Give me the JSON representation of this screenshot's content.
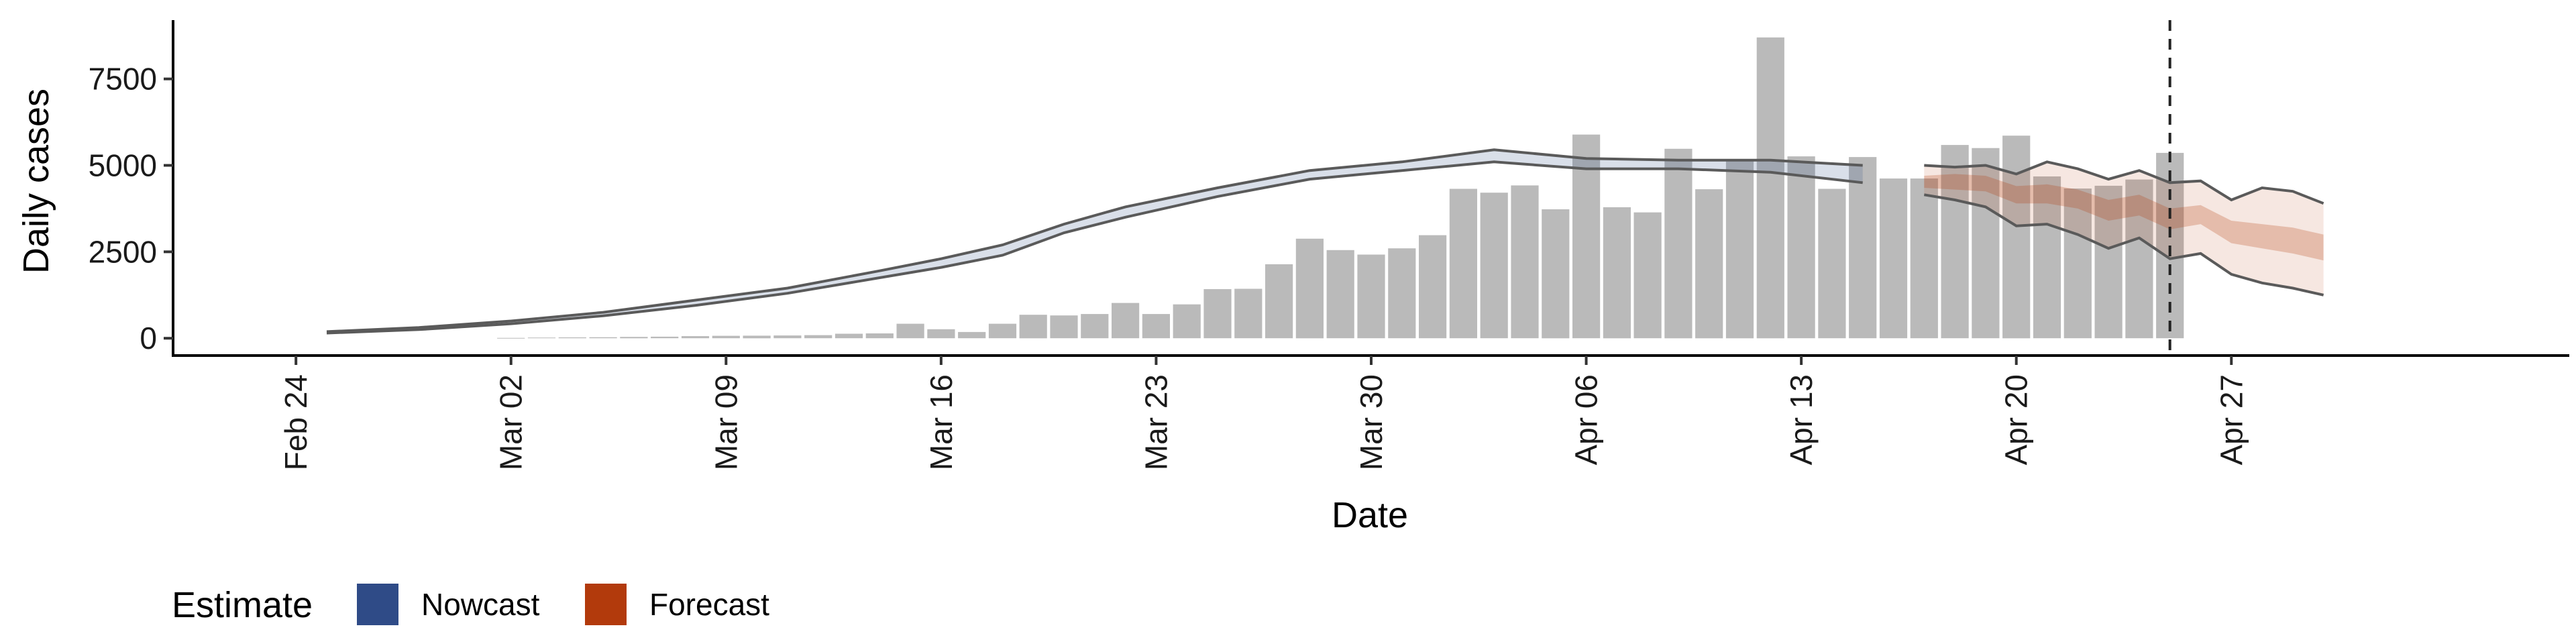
{
  "chart_data": {
    "type": "bar",
    "xlabel": "Date",
    "ylabel": "Daily cases",
    "ylim": [
      -500,
      9200
    ],
    "y_ticks": [
      0,
      2500,
      5000,
      7500
    ],
    "y_tick_labels": [
      "0",
      "2500",
      "5000",
      "7500"
    ],
    "x_ticks": [
      "2020-02-24",
      "2020-03-02",
      "2020-03-09",
      "2020-03-16",
      "2020-03-23",
      "2020-03-30",
      "2020-04-06",
      "2020-04-13",
      "2020-04-20",
      "2020-04-27"
    ],
    "x_tick_labels": [
      "Feb 24",
      "Mar 02",
      "Mar 09",
      "Mar 16",
      "Mar 23",
      "Mar 30",
      "Apr 06",
      "Apr 13",
      "Apr 20",
      "Apr 27"
    ],
    "xlim": [
      "2020-02-20",
      "2020-05-08"
    ],
    "reference_line_date": "2020-04-25",
    "bars": {
      "dates": [
        "2020-03-02",
        "2020-03-03",
        "2020-03-04",
        "2020-03-05",
        "2020-03-06",
        "2020-03-07",
        "2020-03-08",
        "2020-03-09",
        "2020-03-10",
        "2020-03-11",
        "2020-03-12",
        "2020-03-13",
        "2020-03-14",
        "2020-03-15",
        "2020-03-16",
        "2020-03-17",
        "2020-03-18",
        "2020-03-19",
        "2020-03-20",
        "2020-03-21",
        "2020-03-22",
        "2020-03-23",
        "2020-03-24",
        "2020-03-25",
        "2020-03-26",
        "2020-03-27",
        "2020-03-28",
        "2020-03-29",
        "2020-03-30",
        "2020-03-31",
        "2020-04-01",
        "2020-04-02",
        "2020-04-03",
        "2020-04-04",
        "2020-04-05",
        "2020-04-06",
        "2020-04-07",
        "2020-04-08",
        "2020-04-09",
        "2020-04-10",
        "2020-04-11",
        "2020-04-12",
        "2020-04-13",
        "2020-04-14",
        "2020-04-15",
        "2020-04-16",
        "2020-04-17",
        "2020-04-18",
        "2020-04-19",
        "2020-04-20",
        "2020-04-21",
        "2020-04-22",
        "2020-04-23",
        "2020-04-24",
        "2020-04-25"
      ],
      "values": [
        10,
        20,
        25,
        30,
        40,
        45,
        60,
        70,
        75,
        80,
        90,
        130,
        140,
        420,
        260,
        180,
        420,
        680,
        660,
        700,
        1020,
        700,
        980,
        1420,
        1430,
        2140,
        2880,
        2550,
        2420,
        2600,
        2980,
        4320,
        4210,
        4420,
        3730,
        5890,
        3790,
        3640,
        5480,
        4310,
        5150,
        8700,
        5260,
        4320,
        5240,
        4620,
        4620,
        5590,
        5500,
        5860,
        4680,
        4330,
        4410,
        4590,
        5360
      ]
    },
    "series": [
      {
        "name": "Nowcast",
        "color": "#2f4b87",
        "dates": [
          "2020-02-25",
          "2020-02-28",
          "2020-03-02",
          "2020-03-05",
          "2020-03-08",
          "2020-03-11",
          "2020-03-14",
          "2020-03-16",
          "2020-03-18",
          "2020-03-20",
          "2020-03-22",
          "2020-03-25",
          "2020-03-28",
          "2020-03-31",
          "2020-04-03",
          "2020-04-06",
          "2020-04-09",
          "2020-04-12",
          "2020-04-15"
        ],
        "lower": [
          150,
          250,
          420,
          650,
          950,
          1300,
          1750,
          2050,
          2400,
          3050,
          3500,
          4100,
          4600,
          4850,
          5100,
          4900,
          4900,
          4800,
          4500
        ],
        "upper": [
          190,
          310,
          500,
          750,
          1100,
          1450,
          1950,
          2300,
          2700,
          3300,
          3800,
          4350,
          4850,
          5100,
          5450,
          5200,
          5150,
          5150,
          5000
        ]
      },
      {
        "name": "Forecast",
        "color": "#b23a0c",
        "dates": [
          "2020-04-17",
          "2020-04-18",
          "2020-04-19",
          "2020-04-20",
          "2020-04-21",
          "2020-04-22",
          "2020-04-23",
          "2020-04-24",
          "2020-04-25",
          "2020-04-26",
          "2020-04-27",
          "2020-04-28",
          "2020-04-29",
          "2020-04-30"
        ],
        "lower": [
          4150,
          4000,
          3800,
          3250,
          3300,
          3000,
          2600,
          2900,
          2300,
          2450,
          1850,
          1600,
          1450,
          1250
        ],
        "inner_lower": [
          4350,
          4300,
          4250,
          3900,
          3900,
          3750,
          3400,
          3550,
          3150,
          3300,
          2750,
          2600,
          2450,
          2250
        ],
        "inner_upper": [
          4700,
          4750,
          4700,
          4400,
          4450,
          4300,
          4000,
          4150,
          3750,
          3850,
          3400,
          3300,
          3200,
          3000
        ],
        "upper": [
          5000,
          4950,
          5000,
          4750,
          5100,
          4900,
          4600,
          4850,
          4500,
          4550,
          4000,
          4350,
          4250,
          3900
        ]
      }
    ],
    "legend": {
      "title": "Estimate",
      "position": "bottom-left",
      "items": [
        {
          "name": "Nowcast",
          "color": "#2f4b87"
        },
        {
          "name": "Forecast",
          "color": "#b23a0c"
        }
      ]
    },
    "grid": false
  }
}
